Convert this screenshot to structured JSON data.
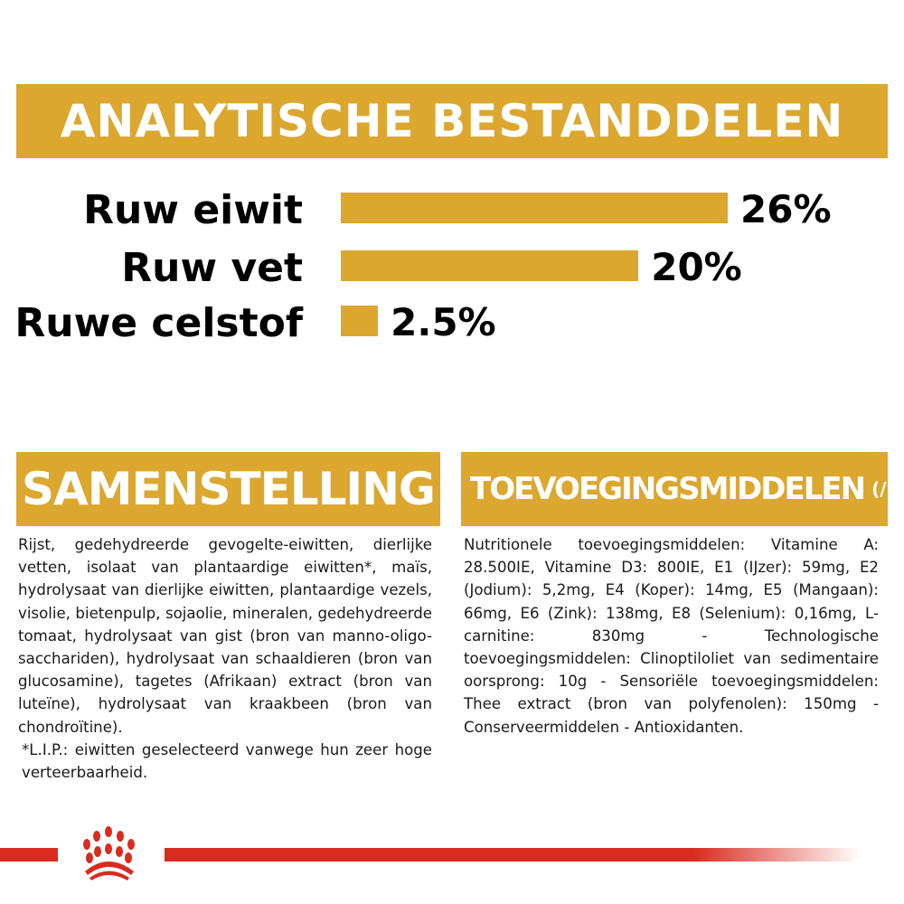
{
  "header": {
    "title": "ANALYTISCHE BESTANDDELEN"
  },
  "analytics": [
    {
      "label": "Ruw eiwit",
      "value": 26,
      "display": "26%"
    },
    {
      "label": "Ruw vet",
      "value": 20,
      "display": "20%"
    },
    {
      "label": "Ruwe celstof",
      "value": 2.5,
      "display": "2.5%"
    }
  ],
  "composition": {
    "title": "SAMENSTELLING",
    "text": "Rijst, gedehydreerde gevogelte-eiwitten, dierlijke vetten, isolaat van plantaardige eiwitten*, maïs, hydrolysaat van dierlijke eiwitten, plantaardige vezels, visolie, bietenpulp, sojaolie, mineralen, gedehydreerde tomaat, hydrolysaat van gist (bron van manno-oligo-sacchariden), hydrolysaat van schaaldieren (bron van glucosamine), tagetes (Afrikaan) extract (bron van luteïne), hydrolysaat van kraakbeen (bron van chondroïtine).",
    "footnote": "*L.I.P.: eiwitten geselecteerd vanwege hun zeer hoge verteerbaarheid."
  },
  "additives": {
    "title": "TOEVOEGINGSMIDDELEN",
    "unit": "(/kg)",
    "text": "Nutritionele toevoegingsmiddelen: Vitamine A: 28.500IE, Vitamine D3: 800IE, E1 (IJzer): 59mg, E2 (Jodium): 5,2mg, E4 (Koper): 14mg, E5 (Mangaan): 66mg, E6 (Zink): 138mg, E8 (Selenium): 0,16mg, L-carnitine: 830mg - Technologische toevoegingsmiddelen: Clinoptiloliet van sedimentaire oorsprong: 10g - Sensoriële toevoegingsmiddelen: Thee extract (bron van polyfenolen): 150mg - Conserveermiddelen - Antioxidanten."
  },
  "colors": {
    "accent": "#dba72f",
    "brand_red": "#d92b1f"
  },
  "icons": {
    "logo": "royal-canin-crown-logo"
  }
}
